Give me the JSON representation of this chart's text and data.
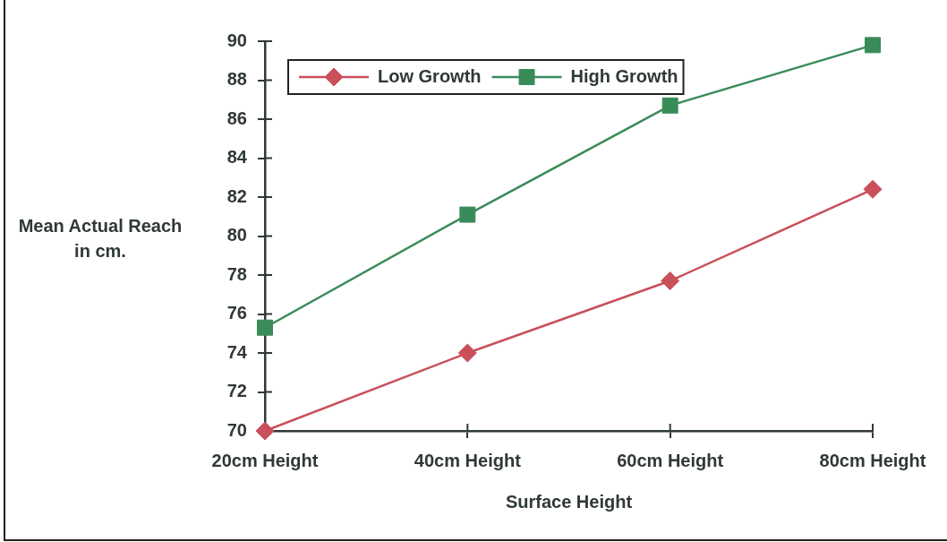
{
  "chart_data": {
    "type": "line",
    "xlabel": "Surface Height",
    "ylabel": "Mean Actual Reach in cm.",
    "categories": [
      "20cm Height",
      "40cm Height",
      "60cm Height",
      "80cm Height"
    ],
    "series": [
      {
        "name": "Low Growth",
        "color": "#c94f5b",
        "marker": "diamond",
        "values": [
          70.0,
          74.0,
          77.7,
          82.4
        ]
      },
      {
        "name": "High Growth",
        "color": "#3a8b5a",
        "marker": "square",
        "values": [
          75.3,
          81.1,
          86.7,
          89.8
        ]
      }
    ],
    "ylim": [
      70,
      90
    ],
    "yticks": [
      70,
      72,
      74,
      76,
      78,
      80,
      82,
      84,
      86,
      88,
      90
    ],
    "legend": "top left"
  }
}
